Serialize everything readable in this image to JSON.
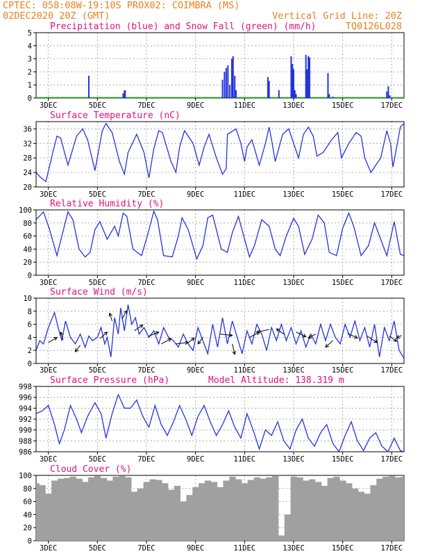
{
  "header": {
    "line1_left": "CPTEC:   058:08W-19:10S   PROX02: COIMBRA (MS)",
    "line2_left": "02DEC2020 20Z (GMT)",
    "line2_right": "Vertical Grid Line: 20Z",
    "line3_right": "TQ0126L028"
  },
  "colors": {
    "series": "#2233dd",
    "snow": "#22aa22",
    "cloud": "#a0a0a0",
    "arrow": "#000000",
    "header": "#e8801e",
    "title": "#e0107e"
  },
  "chart_data": [
    {
      "id": "precip",
      "type": "bar",
      "title": "Precipitation (blue) and Snow Fall (green) (mm/h)",
      "ylim": [
        0,
        5
      ],
      "yticks": [
        0,
        1,
        2,
        3,
        4,
        5
      ],
      "x_range": [
        0,
        15
      ],
      "xtick_labels": [
        "3DEC",
        "5DEC",
        "7DEC",
        "9DEC",
        "11DEC",
        "13DEC",
        "15DEC",
        "17DEC"
      ],
      "xtick_positions": [
        0.5,
        2.5,
        4.5,
        6.5,
        8.5,
        10.5,
        12.5,
        14.5
      ],
      "bar_width": 0.045,
      "bars": [
        [
          2.15,
          1.7
        ],
        [
          3.55,
          0.35
        ],
        [
          3.6,
          0.55
        ],
        [
          3.63,
          0.6
        ],
        [
          7.6,
          1.4
        ],
        [
          7.68,
          2.0
        ],
        [
          7.75,
          2.3
        ],
        [
          7.82,
          2.5
        ],
        [
          7.9,
          1.0
        ],
        [
          7.98,
          3.0
        ],
        [
          8.03,
          3.2
        ],
        [
          8.1,
          1.7
        ],
        [
          8.15,
          0.6
        ],
        [
          9.45,
          1.6
        ],
        [
          9.5,
          1.3
        ],
        [
          9.9,
          0.6
        ],
        [
          10.4,
          3.2
        ],
        [
          10.45,
          2.6
        ],
        [
          10.5,
          2.2
        ],
        [
          10.55,
          0.6
        ],
        [
          10.6,
          0.3
        ],
        [
          11.0,
          3.3
        ],
        [
          11.05,
          2.2
        ],
        [
          11.1,
          3.2
        ],
        [
          11.15,
          3.1
        ],
        [
          11.9,
          1.9
        ],
        [
          11.95,
          0.3
        ],
        [
          12.1,
          0.1
        ],
        [
          14.3,
          0.5
        ],
        [
          14.36,
          0.9
        ],
        [
          14.42,
          0.2
        ]
      ],
      "snow": [
        [
          0,
          0.02
        ],
        [
          15,
          0.02
        ]
      ]
    },
    {
      "id": "temp",
      "type": "line",
      "title": "Surface Temperature (nC)",
      "ylim": [
        20,
        38
      ],
      "yticks": [
        20,
        24,
        28,
        32,
        36
      ],
      "x_range": [
        0,
        15
      ],
      "xtick_labels": [
        "3DEC",
        "5DEC",
        "7DEC",
        "9DEC",
        "11DEC",
        "13DEC",
        "15DEC",
        "17DEC"
      ],
      "xtick_positions": [
        0.5,
        2.5,
        4.5,
        6.5,
        8.5,
        10.5,
        12.5,
        14.5
      ],
      "x": [
        0,
        0.2,
        0.4,
        0.7,
        0.85,
        1.0,
        1.3,
        1.65,
        1.9,
        2.1,
        2.4,
        2.7,
        2.85,
        3.1,
        3.4,
        3.6,
        3.75,
        4.1,
        4.4,
        4.6,
        4.8,
        5.0,
        5.15,
        5.5,
        5.7,
        5.85,
        6.05,
        6.4,
        6.65,
        6.85,
        7.05,
        7.35,
        7.6,
        7.75,
        7.8,
        8.15,
        8.35,
        8.5,
        8.6,
        8.8,
        9.1,
        9.35,
        9.5,
        9.6,
        9.75,
        10.05,
        10.3,
        10.45,
        10.7,
        10.9,
        11.1,
        11.3,
        11.45,
        11.7,
        12.05,
        12.3,
        12.45,
        12.75,
        13.05,
        13.25,
        13.4,
        13.65,
        14.05,
        14.3,
        14.45,
        14.55,
        14.85,
        15
      ],
      "y": [
        24,
        22.5,
        21.5,
        30,
        34,
        33.5,
        26,
        34,
        36,
        33,
        24.5,
        35.5,
        37.5,
        35,
        27,
        23.5,
        29.5,
        34.5,
        29.5,
        22.5,
        30.5,
        35.5,
        35,
        27,
        24,
        31,
        35.5,
        32,
        26,
        31,
        34.5,
        28,
        23.5,
        25,
        34.5,
        36,
        32,
        27,
        31,
        33,
        26,
        32,
        36.5,
        33,
        27,
        34.5,
        36,
        33,
        28,
        34.5,
        36.5,
        34,
        28.5,
        29.5,
        33,
        35,
        28,
        32,
        35,
        34,
        28,
        24,
        28,
        35.5,
        32,
        25.5,
        36.5,
        37.5
      ]
    },
    {
      "id": "rh",
      "type": "line",
      "title": "Relative Humidity (%)",
      "ylim": [
        0,
        100
      ],
      "yticks": [
        0,
        20,
        40,
        60,
        80,
        100
      ],
      "x_range": [
        0,
        15
      ],
      "xtick_labels": [
        "3DEC",
        "5DEC",
        "7DEC",
        "9DEC",
        "11DEC",
        "13DEC",
        "15DEC",
        "17DEC"
      ],
      "xtick_positions": [
        0.5,
        2.5,
        4.5,
        6.5,
        8.5,
        10.5,
        12.5,
        14.5
      ],
      "x": [
        0,
        0.3,
        0.55,
        0.85,
        1.05,
        1.3,
        1.5,
        1.75,
        2.0,
        2.2,
        2.4,
        2.6,
        2.9,
        3.2,
        3.35,
        3.55,
        3.7,
        3.95,
        4.3,
        4.55,
        4.8,
        4.95,
        5.2,
        5.55,
        5.8,
        5.95,
        6.2,
        6.55,
        6.8,
        7.0,
        7.2,
        7.55,
        7.8,
        8.0,
        8.25,
        8.5,
        8.7,
        8.9,
        9.2,
        9.5,
        9.75,
        9.95,
        10.2,
        10.5,
        10.7,
        10.95,
        11.25,
        11.5,
        11.75,
        11.95,
        12.25,
        12.5,
        12.75,
        12.95,
        13.25,
        13.55,
        13.8,
        14.0,
        14.3,
        14.6,
        14.85,
        15
      ],
      "y": [
        85,
        97,
        70,
        30,
        60,
        97,
        85,
        40,
        28,
        35,
        70,
        82,
        55,
        75,
        60,
        95,
        90,
        40,
        30,
        62,
        98,
        85,
        30,
        28,
        60,
        88,
        70,
        25,
        45,
        88,
        92,
        40,
        35,
        65,
        90,
        55,
        28,
        45,
        85,
        75,
        40,
        30,
        60,
        87,
        75,
        32,
        55,
        92,
        80,
        35,
        30,
        72,
        95,
        75,
        30,
        45,
        80,
        60,
        30,
        82,
        32,
        30
      ]
    },
    {
      "id": "wind",
      "type": "line",
      "title": "Surface Wind (m/s)",
      "ylim": [
        0,
        10
      ],
      "yticks": [
        0,
        2,
        4,
        6,
        8,
        10
      ],
      "x_range": [
        0,
        15
      ],
      "xtick_labels": [
        "3DEC",
        "5DEC",
        "7DEC",
        "9DEC",
        "11DEC",
        "13DEC",
        "15DEC",
        "17DEC"
      ],
      "xtick_positions": [
        0.5,
        2.5,
        4.5,
        6.5,
        8.5,
        10.5,
        12.5,
        14.5
      ],
      "x": [
        0,
        0.15,
        0.3,
        0.5,
        0.75,
        0.9,
        1.05,
        1.2,
        1.4,
        1.6,
        1.8,
        2.0,
        2.15,
        2.3,
        2.5,
        2.65,
        2.8,
        2.9,
        3.05,
        3.2,
        3.35,
        3.45,
        3.6,
        3.75,
        3.9,
        4.05,
        4.2,
        4.4,
        4.6,
        4.8,
        5.0,
        5.2,
        5.4,
        5.6,
        5.8,
        6.0,
        6.2,
        6.4,
        6.6,
        6.8,
        7.0,
        7.2,
        7.4,
        7.6,
        7.8,
        8.0,
        8.2,
        8.4,
        8.6,
        8.8,
        9.0,
        9.2,
        9.4,
        9.6,
        9.8,
        10.0,
        10.2,
        10.4,
        10.6,
        10.8,
        11.0,
        11.2,
        11.4,
        11.6,
        11.8,
        12.0,
        12.2,
        12.4,
        12.6,
        12.8,
        13.0,
        13.2,
        13.4,
        13.6,
        13.8,
        14.0,
        14.2,
        14.4,
        14.6,
        14.8,
        15.0
      ],
      "y": [
        2.0,
        3.5,
        3.0,
        5.5,
        7.8,
        5.5,
        3.5,
        6.5,
        4.0,
        3.0,
        4.5,
        2.5,
        4.2,
        3.5,
        4.0,
        5.5,
        3.0,
        4.0,
        1.0,
        7.0,
        4.5,
        8.5,
        5.0,
        9.0,
        6.0,
        7.0,
        4.5,
        5.5,
        4.0,
        5.0,
        3.0,
        5.5,
        4.0,
        3.5,
        2.5,
        4.5,
        3.0,
        2.0,
        5.5,
        3.5,
        1.5,
        6.0,
        2.5,
        7.0,
        3.0,
        6.5,
        4.0,
        1.5,
        5.0,
        3.0,
        6.0,
        4.5,
        2.0,
        5.5,
        3.5,
        6.0,
        3.5,
        5.5,
        3.0,
        5.0,
        2.5,
        4.5,
        3.0,
        6.0,
        3.5,
        6.0,
        4.0,
        3.0,
        6.0,
        4.0,
        6.5,
        3.5,
        5.5,
        2.5,
        6.0,
        1.0,
        5.5,
        3.5,
        6.5,
        2.0,
        0.8
      ],
      "arrows": [
        [
          0.5,
          3.2,
          0.35,
          0.8
        ],
        [
          1.1,
          3.6,
          -0.1,
          1.2
        ],
        [
          1.8,
          2.8,
          -0.2,
          -1.0
        ],
        [
          2.6,
          3.8,
          0.3,
          1.0
        ],
        [
          3.1,
          6.5,
          -0.1,
          1.2
        ],
        [
          3.5,
          6.8,
          0.2,
          1.3
        ],
        [
          4.0,
          5.0,
          0.35,
          0.9
        ],
        [
          4.6,
          4.2,
          0.4,
          0.6
        ],
        [
          5.1,
          3.0,
          0.4,
          0.8
        ],
        [
          5.7,
          3.0,
          0.5,
          0.2
        ],
        [
          6.2,
          3.2,
          0.25,
          0.7
        ],
        [
          6.8,
          4.0,
          -0.2,
          -1.0
        ],
        [
          7.5,
          4.5,
          0.5,
          -0.2
        ],
        [
          8.0,
          3.0,
          0.1,
          -1.6
        ],
        [
          8.7,
          4.0,
          0.4,
          0.8
        ],
        [
          9.5,
          5.2,
          -0.5,
          -0.4
        ],
        [
          10.1,
          4.5,
          -0.3,
          0.8
        ],
        [
          10.6,
          4.8,
          0.4,
          -0.7
        ],
        [
          11.4,
          4.5,
          -0.3,
          -0.6
        ],
        [
          12.1,
          3.5,
          -0.3,
          -1.0
        ],
        [
          12.7,
          4.6,
          0.4,
          -0.7
        ],
        [
          13.5,
          4.2,
          0.4,
          -1.0
        ],
        [
          14.4,
          4.2,
          0.3,
          -0.8
        ],
        [
          14.9,
          4.3,
          -0.2,
          -0.4
        ]
      ]
    },
    {
      "id": "pres",
      "type": "line",
      "title": "Surface Pressure (hPa)",
      "annotation": "Model Altitude: 138.319 m",
      "ylim": [
        986,
        998
      ],
      "yticks": [
        986,
        988,
        990,
        992,
        994,
        996,
        998
      ],
      "x_range": [
        0,
        15
      ],
      "xtick_labels": [
        "3DEC",
        "5DEC",
        "7DEC",
        "9DEC",
        "11DEC",
        "13DEC",
        "15DEC",
        "17DEC"
      ],
      "xtick_positions": [
        0.5,
        2.5,
        4.5,
        6.5,
        8.5,
        10.5,
        12.5,
        14.5
      ],
      "x": [
        0,
        0.25,
        0.5,
        0.75,
        0.95,
        1.15,
        1.4,
        1.65,
        1.85,
        2.1,
        2.4,
        2.65,
        2.85,
        3.1,
        3.35,
        3.6,
        3.85,
        4.1,
        4.35,
        4.6,
        4.85,
        5.1,
        5.35,
        5.6,
        5.85,
        6.1,
        6.35,
        6.6,
        6.85,
        7.1,
        7.35,
        7.6,
        7.85,
        8.1,
        8.35,
        8.6,
        8.85,
        9.1,
        9.35,
        9.6,
        9.85,
        10.1,
        10.35,
        10.6,
        10.85,
        11.1,
        11.35,
        11.6,
        11.85,
        12.1,
        12.35,
        12.6,
        12.85,
        13.1,
        13.35,
        13.6,
        13.85,
        14.1,
        14.35,
        14.6,
        14.85,
        15
      ],
      "y": [
        993,
        993.5,
        994.5,
        991,
        987.5,
        990,
        994.5,
        992,
        989.5,
        992.5,
        995,
        993,
        988.5,
        993,
        996.5,
        994,
        994,
        995.5,
        992.5,
        990.5,
        994.5,
        991,
        989,
        991.5,
        994.5,
        992,
        989,
        992.5,
        994.5,
        991.5,
        989,
        991,
        993.5,
        990.5,
        988.5,
        993,
        990,
        986.5,
        990,
        989,
        991.5,
        988,
        986.5,
        990,
        992,
        988.5,
        987,
        989.5,
        991,
        987.5,
        986,
        989,
        991.5,
        988,
        986.2,
        988.5,
        989.5,
        987,
        986,
        988.5,
        986.2,
        986
      ]
    },
    {
      "id": "cloud",
      "type": "bar",
      "title": "Cloud Cover (%)",
      "ylim": [
        0,
        100
      ],
      "yticks": [
        0,
        20,
        40,
        60,
        80,
        100
      ],
      "x_range": [
        0,
        15
      ],
      "xtick_labels": [
        "3DEC",
        "5DEC",
        "7DEC",
        "9DEC",
        "11DEC",
        "13DEC",
        "15DEC",
        "17DEC"
      ],
      "xtick_positions": [
        0.5,
        2.5,
        4.5,
        6.5,
        8.5,
        10.5,
        12.5,
        14.5
      ],
      "x": [
        0,
        0.25,
        0.5,
        0.75,
        1.0,
        1.25,
        1.5,
        1.75,
        2.0,
        2.25,
        2.5,
        2.75,
        3.0,
        3.25,
        3.5,
        3.75,
        4.0,
        4.25,
        4.5,
        4.75,
        5.0,
        5.25,
        5.5,
        5.75,
        6.0,
        6.25,
        6.5,
        6.75,
        7.0,
        7.25,
        7.5,
        7.75,
        8.0,
        8.25,
        8.5,
        8.75,
        9.0,
        9.25,
        9.5,
        9.75,
        10.0,
        10.25,
        10.5,
        10.75,
        11.0,
        11.25,
        11.5,
        11.75,
        12.0,
        12.25,
        12.5,
        12.75,
        13.0,
        13.25,
        13.5,
        13.75,
        14.0,
        14.25,
        14.5,
        14.75,
        15.0
      ],
      "values": [
        88,
        85,
        72,
        92,
        95,
        96,
        98,
        95,
        90,
        97,
        99,
        96,
        92,
        98,
        99,
        97,
        75,
        80,
        90,
        94,
        93,
        88,
        78,
        84,
        60,
        70,
        82,
        88,
        92,
        90,
        82,
        92,
        98,
        94,
        88,
        93,
        97,
        95,
        97,
        99,
        8,
        40,
        98,
        97,
        92,
        94,
        90,
        84,
        96,
        98,
        92,
        88,
        80,
        75,
        72,
        85,
        95,
        98,
        99,
        97,
        98
      ]
    }
  ]
}
